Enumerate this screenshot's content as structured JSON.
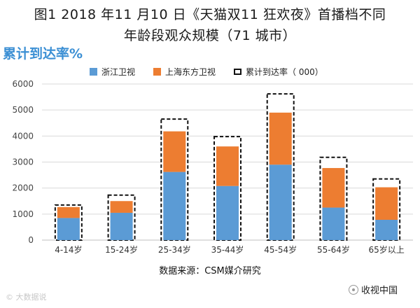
{
  "chart_data": {
    "type": "bar",
    "title_line1": "图1 2018 年11 月10 日《天猫双11 狂欢夜》首播档不同",
    "title_line2": "年龄段观众规模（71 城市）",
    "ylabel": "累计到达率%",
    "categories": [
      "4-14岁",
      "15-24岁",
      "25-34岁",
      "35-44岁",
      "45-54岁",
      "55-64岁",
      "65岁以上"
    ],
    "series": [
      {
        "name": "浙江卫视",
        "values": [
          850,
          1050,
          2620,
          2080,
          2900,
          1250,
          780
        ],
        "color": "#5b9bd5"
      },
      {
        "name": "上海东方卫视",
        "values": [
          420,
          450,
          1560,
          1520,
          2000,
          1520,
          1250
        ],
        "color": "#ed7d31"
      },
      {
        "name": "累计到达率（ 000）",
        "values": [
          1350,
          1730,
          4650,
          3980,
          5620,
          3180,
          2350
        ],
        "style": "dashed-outline"
      }
    ],
    "ylim": [
      0,
      6000
    ],
    "yticks": [
      0,
      1000,
      2000,
      3000,
      4000,
      5000,
      6000
    ],
    "grid": true,
    "legend_position": "top",
    "source": "数据来源：CSM媒介研究"
  },
  "watermarks": {
    "left": "© 大数据说",
    "right": "收视中国"
  }
}
